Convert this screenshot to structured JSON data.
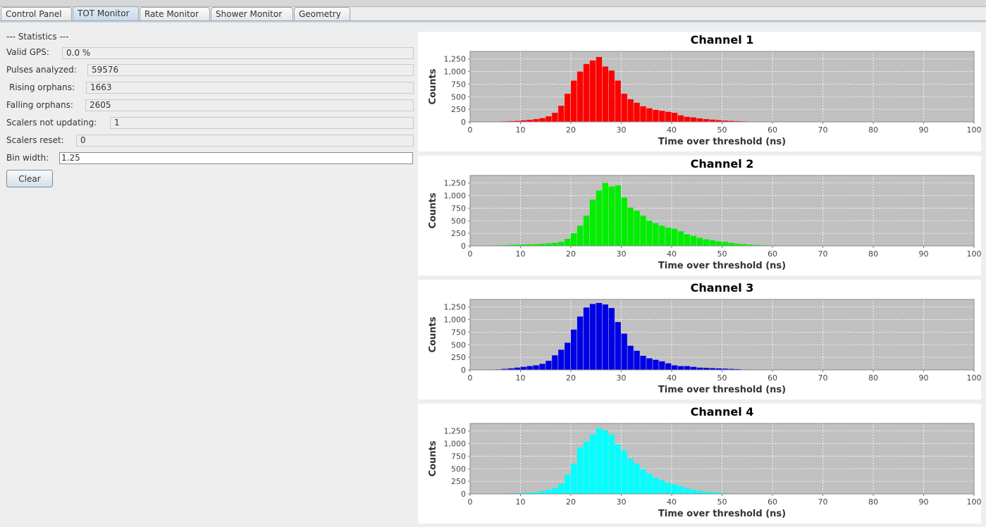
{
  "tabs": [
    {
      "label": "Control Panel",
      "active": false
    },
    {
      "label": "TOT Monitor",
      "active": true
    },
    {
      "label": "Rate Monitor",
      "active": false
    },
    {
      "label": "Shower Monitor",
      "active": false
    },
    {
      "label": "Geometry",
      "active": false
    }
  ],
  "stats": {
    "heading": "--- Statistics ---",
    "valid_gps": {
      "label": "Valid GPS:",
      "value": "0.0 %"
    },
    "pulses_analyzed": {
      "label": "Pulses analyzed:",
      "value": "59576"
    },
    "rising_orphans": {
      "label": "Rising orphans:",
      "value": "1663"
    },
    "falling_orphans": {
      "label": "Falling orphans:",
      "value": "2605"
    },
    "scalers_not_updating": {
      "label": "Scalers not updating:",
      "value": "1"
    },
    "scalers_reset": {
      "label": "Scalers reset:",
      "value": "0"
    },
    "bin_width": {
      "label": "Bin width:",
      "value": "1.25"
    }
  },
  "clear_button": "Clear",
  "chart_data": [
    {
      "type": "bar",
      "title": "Channel 1",
      "xlabel": "Time over threshold (ns)",
      "ylabel": "Counts",
      "color": "#ff0000",
      "bin_width": 1.25,
      "xlim": [
        0,
        100
      ],
      "ylim": [
        0,
        1400
      ],
      "xticks": [
        0,
        10,
        20,
        30,
        40,
        50,
        60,
        70,
        80,
        90,
        100
      ],
      "yticks": [
        0,
        250,
        500,
        750,
        1000,
        1250
      ],
      "ytick_labels": [
        "0",
        "250",
        "500",
        "750",
        "1,000",
        "1,250"
      ],
      "grid": true,
      "bin_starts": [
        5.0,
        6.25,
        7.5,
        8.75,
        10.0,
        11.25,
        12.5,
        13.75,
        15.0,
        16.25,
        17.5,
        18.75,
        20.0,
        21.25,
        22.5,
        23.75,
        25.0,
        26.25,
        27.5,
        28.75,
        30.0,
        31.25,
        32.5,
        33.75,
        35.0,
        36.25,
        37.5,
        38.75,
        40.0,
        41.25,
        42.5,
        43.75,
        45.0,
        46.25,
        47.5,
        48.75,
        50.0,
        51.25,
        52.5,
        53.75,
        55.0,
        56.25
      ],
      "values": [
        5,
        10,
        15,
        20,
        30,
        40,
        55,
        75,
        110,
        180,
        320,
        560,
        820,
        1000,
        1150,
        1220,
        1290,
        1100,
        1020,
        820,
        560,
        450,
        380,
        310,
        270,
        240,
        220,
        200,
        180,
        130,
        100,
        90,
        70,
        55,
        45,
        35,
        25,
        20,
        15,
        10,
        6,
        3
      ]
    },
    {
      "type": "bar",
      "title": "Channel 2",
      "xlabel": "Time over threshold (ns)",
      "ylabel": "Counts",
      "color": "#00ee00",
      "bin_width": 1.25,
      "xlim": [
        0,
        100
      ],
      "ylim": [
        0,
        1400
      ],
      "xticks": [
        0,
        10,
        20,
        30,
        40,
        50,
        60,
        70,
        80,
        90,
        100
      ],
      "yticks": [
        0,
        250,
        500,
        750,
        1000,
        1250
      ],
      "ytick_labels": [
        "0",
        "250",
        "500",
        "750",
        "1,000",
        "1,250"
      ],
      "grid": true,
      "bin_starts": [
        5.0,
        6.25,
        7.5,
        8.75,
        10.0,
        11.25,
        12.5,
        13.75,
        15.0,
        16.25,
        17.5,
        18.75,
        20.0,
        21.25,
        22.5,
        23.75,
        25.0,
        26.25,
        27.5,
        28.75,
        30.0,
        31.25,
        32.5,
        33.75,
        35.0,
        36.25,
        37.5,
        38.75,
        40.0,
        41.25,
        42.5,
        43.75,
        45.0,
        46.25,
        47.5,
        48.75,
        50.0,
        51.25,
        52.5,
        53.75,
        55.0,
        56.25,
        57.5,
        58.75,
        60.0
      ],
      "values": [
        10,
        15,
        20,
        25,
        28,
        30,
        35,
        40,
        50,
        60,
        80,
        140,
        250,
        400,
        600,
        920,
        1100,
        1250,
        1180,
        1200,
        960,
        760,
        700,
        600,
        500,
        450,
        400,
        360,
        340,
        290,
        230,
        200,
        160,
        130,
        110,
        90,
        80,
        60,
        45,
        35,
        25,
        18,
        12,
        8,
        4
      ]
    },
    {
      "type": "bar",
      "title": "Channel 3",
      "xlabel": "Time over threshold (ns)",
      "ylabel": "Counts",
      "color": "#0000e6",
      "bin_width": 1.25,
      "xlim": [
        0,
        100
      ],
      "ylim": [
        0,
        1400
      ],
      "xticks": [
        0,
        10,
        20,
        30,
        40,
        50,
        60,
        70,
        80,
        90,
        100
      ],
      "yticks": [
        0,
        250,
        500,
        750,
        1000,
        1250
      ],
      "ytick_labels": [
        "0",
        "250",
        "500",
        "750",
        "1,000",
        "1,250"
      ],
      "grid": true,
      "bin_starts": [
        3.75,
        5.0,
        6.25,
        7.5,
        8.75,
        10.0,
        11.25,
        12.5,
        13.75,
        15.0,
        16.25,
        17.5,
        18.75,
        20.0,
        21.25,
        22.5,
        23.75,
        25.0,
        26.25,
        27.5,
        28.75,
        30.0,
        31.25,
        32.5,
        33.75,
        35.0,
        36.25,
        37.5,
        38.75,
        40.0,
        41.25,
        42.5,
        43.75,
        45.0,
        46.25,
        47.5,
        48.75,
        50.0,
        51.25,
        52.5,
        53.75,
        55.0
      ],
      "values": [
        5,
        10,
        20,
        30,
        45,
        60,
        75,
        90,
        120,
        180,
        290,
        400,
        540,
        800,
        1060,
        1240,
        1310,
        1330,
        1300,
        1230,
        950,
        720,
        480,
        380,
        280,
        230,
        200,
        170,
        130,
        90,
        75,
        75,
        60,
        45,
        40,
        35,
        30,
        25,
        20,
        15,
        8,
        4
      ]
    },
    {
      "type": "bar",
      "title": "Channel 4",
      "xlabel": "Time over threshold (ns)",
      "ylabel": "Counts",
      "color": "#00ffff",
      "bin_width": 1.25,
      "xlim": [
        0,
        100
      ],
      "ylim": [
        0,
        1400
      ],
      "xticks": [
        0,
        10,
        20,
        30,
        40,
        50,
        60,
        70,
        80,
        90,
        100
      ],
      "yticks": [
        0,
        250,
        500,
        750,
        1000,
        1250
      ],
      "ytick_labels": [
        "0",
        "250",
        "500",
        "750",
        "1,000",
        "1,250"
      ],
      "grid": true,
      "bin_starts": [
        6.25,
        7.5,
        8.75,
        10.0,
        11.25,
        12.5,
        13.75,
        15.0,
        16.25,
        17.5,
        18.75,
        20.0,
        21.25,
        22.5,
        23.75,
        25.0,
        26.25,
        27.5,
        28.75,
        30.0,
        31.25,
        32.5,
        33.75,
        35.0,
        36.25,
        37.5,
        38.75,
        40.0,
        41.25,
        42.5,
        43.75,
        45.0,
        46.25,
        47.5,
        48.75,
        50.0,
        51.25,
        52.5
      ],
      "values": [
        5,
        10,
        15,
        20,
        28,
        35,
        55,
        80,
        120,
        200,
        380,
        600,
        920,
        1040,
        1180,
        1310,
        1260,
        1180,
        980,
        860,
        700,
        600,
        490,
        400,
        320,
        270,
        220,
        190,
        150,
        110,
        80,
        60,
        45,
        35,
        25,
        15,
        8,
        4
      ]
    }
  ]
}
